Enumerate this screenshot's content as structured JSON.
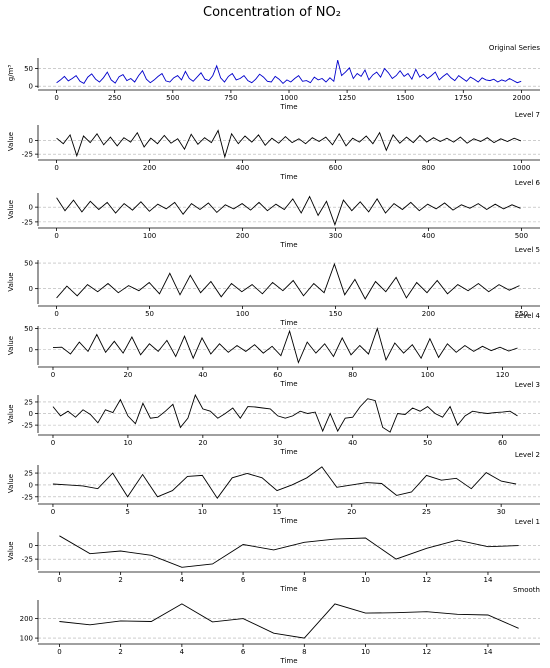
{
  "figure": {
    "title": "Concentration of NO₂"
  },
  "chart_data": [
    {
      "type": "line",
      "title": "Original Series",
      "xlabel": "Time",
      "ylabel": "g/m³",
      "color": "#0000cc",
      "xlim": [
        -80,
        2080
      ],
      "ylim": [
        -5,
        80
      ],
      "xticks": [
        0,
        250,
        500,
        750,
        1000,
        1250,
        1500,
        1750,
        2000
      ],
      "yticks": [
        0,
        50
      ],
      "grid": "horizontal dashed",
      "series": [
        {
          "x_count": 2000,
          "values": [
            10,
            18,
            28,
            15,
            22,
            30,
            14,
            8,
            26,
            35,
            20,
            12,
            24,
            40,
            18,
            9,
            27,
            33,
            16,
            22,
            12,
            30,
            44,
            20,
            10,
            18,
            28,
            36,
            15,
            12,
            24,
            30,
            18,
            42,
            22,
            14,
            26,
            38,
            20,
            16,
            30,
            58,
            24,
            12,
            28,
            36,
            18,
            22,
            30,
            16,
            10,
            20,
            34,
            26,
            14,
            12,
            28,
            20,
            8,
            18,
            12,
            22,
            30,
            14,
            16,
            10,
            26,
            18,
            22,
            12,
            24,
            14,
            74,
            30,
            40,
            52,
            22,
            36,
            28,
            46,
            18,
            32,
            40,
            26,
            50,
            38,
            22,
            30,
            44,
            28,
            36,
            20,
            48,
            26,
            34,
            22,
            30,
            40,
            18,
            28,
            36,
            24,
            16,
            30,
            22,
            14,
            26,
            20,
            12,
            24,
            18,
            16,
            20,
            12,
            18,
            14,
            22,
            16,
            10,
            14
          ]
        }
      ]
    },
    {
      "type": "line",
      "title": "Level 7",
      "xlabel": "Time",
      "ylabel": "Value",
      "color": "#000000",
      "xlim": [
        -40,
        1040
      ],
      "ylim": [
        -32,
        28
      ],
      "xticks": [
        0,
        200,
        400,
        600,
        800,
        1000
      ],
      "yticks": [
        -25,
        0
      ],
      "grid": "horizontal dashed",
      "series": [
        {
          "x_count": 1000,
          "values": [
            4,
            -6,
            10,
            -28,
            8,
            -4,
            12,
            -8,
            6,
            -10,
            5,
            -3,
            14,
            -12,
            4,
            -6,
            9,
            -5,
            3,
            -16,
            11,
            -7,
            5,
            -4,
            18,
            -30,
            12,
            -6,
            8,
            -3,
            10,
            -9,
            4,
            -5,
            7,
            -4,
            3,
            -6,
            5,
            -2,
            6,
            -8,
            12,
            -10,
            4,
            -3,
            8,
            -6,
            14,
            -18,
            10,
            -5,
            6,
            -4,
            9,
            -3,
            5,
            -2,
            4,
            -3,
            6,
            -5,
            3,
            -2,
            5,
            -4,
            3,
            -2,
            4,
            -1
          ]
        }
      ]
    },
    {
      "type": "line",
      "title": "Level 6",
      "xlabel": "Time",
      "ylabel": "Value",
      "color": "#000000",
      "xlim": [
        -20,
        520
      ],
      "ylim": [
        -32,
        24
      ],
      "xticks": [
        0,
        100,
        200,
        300,
        400,
        500
      ],
      "yticks": [
        -25,
        0
      ],
      "grid": "horizontal dashed",
      "series": [
        {
          "x_count": 500,
          "values": [
            16,
            -6,
            12,
            -8,
            10,
            -4,
            8,
            -10,
            6,
            -5,
            9,
            -7,
            5,
            -3,
            8,
            -12,
            6,
            -4,
            7,
            -9,
            4,
            -3,
            6,
            -5,
            8,
            -6,
            5,
            -4,
            14,
            -10,
            18,
            -14,
            10,
            -30,
            12,
            -6,
            9,
            -8,
            14,
            -10,
            6,
            -4,
            8,
            -6,
            5,
            -3,
            7,
            -5,
            4,
            -2,
            6,
            -4,
            5,
            -3,
            4,
            -2
          ]
        }
      ]
    },
    {
      "type": "line",
      "title": "Level 5",
      "xlabel": "Time",
      "ylabel": "Value",
      "color": "#000000",
      "xlim": [
        -10,
        260
      ],
      "ylim": [
        -30,
        56
      ],
      "xticks": [
        0,
        50,
        100,
        150,
        200,
        250
      ],
      "yticks": [
        0,
        50
      ],
      "grid": "horizontal dashed",
      "series": [
        {
          "x_count": 250,
          "values": [
            -18,
            5,
            -14,
            8,
            -6,
            10,
            -8,
            6,
            -4,
            12,
            -10,
            30,
            -12,
            26,
            -8,
            14,
            -16,
            10,
            -6,
            8,
            -10,
            12,
            -4,
            16,
            -14,
            10,
            -8,
            48,
            -12,
            18,
            -20,
            14,
            -6,
            22,
            -18,
            12,
            -8,
            16,
            -10,
            8,
            -4,
            10,
            -6,
            8,
            -3,
            6
          ]
        }
      ]
    },
    {
      "type": "line",
      "title": "Level 4",
      "xlabel": "Time",
      "ylabel": "Value",
      "color": "#000000",
      "xlim": [
        -4,
        130
      ],
      "ylim": [
        -36,
        56
      ],
      "xticks": [
        0,
        20,
        40,
        60,
        80,
        100,
        120
      ],
      "yticks": [
        0,
        50
      ],
      "grid": "horizontal dashed",
      "series": [
        {
          "x_count": 125,
          "values": [
            5,
            6,
            -10,
            18,
            -4,
            36,
            -6,
            20,
            -8,
            30,
            -12,
            14,
            -4,
            22,
            -16,
            32,
            -20,
            28,
            -10,
            14,
            -6,
            10,
            -4,
            12,
            -8,
            8,
            -14,
            44,
            -30,
            18,
            -8,
            14,
            -16,
            28,
            -12,
            10,
            -10,
            50,
            -24,
            16,
            -8,
            12,
            -20,
            26,
            -18,
            14,
            -6,
            10,
            -4,
            8,
            -2,
            6,
            -3,
            4
          ]
        }
      ]
    },
    {
      "type": "line",
      "title": "Level 3",
      "xlabel": "Time",
      "ylabel": "Value",
      "color": "#000000",
      "xlim": [
        -2,
        65
      ],
      "ylim": [
        -42,
        40
      ],
      "xticks": [
        0,
        10,
        20,
        30,
        40,
        50,
        60
      ],
      "yticks": [
        -25,
        0,
        25
      ],
      "grid": "horizontal dashed",
      "series": [
        {
          "x_count": 63,
          "values": [
            15,
            -5,
            5,
            -8,
            8,
            -2,
            -20,
            8,
            2,
            30,
            -5,
            -22,
            22,
            -10,
            -8,
            5,
            20,
            -30,
            -10,
            40,
            10,
            5,
            -10,
            0,
            12,
            -10,
            15,
            14,
            12,
            10,
            -5,
            -10,
            -5,
            5,
            0,
            3,
            -38,
            0,
            -38,
            -10,
            -8,
            15,
            32,
            28,
            -30,
            -40,
            0,
            -2,
            12,
            5,
            15,
            0,
            -8,
            15,
            -25,
            -5,
            5,
            2,
            0,
            2,
            3,
            5,
            -5
          ]
        }
      ]
    },
    {
      "type": "line",
      "title": "Level 2",
      "xlabel": "Time",
      "ylabel": "Value",
      "color": "#000000",
      "xlim": [
        -1,
        32.6
      ],
      "ylim": [
        -36,
        42
      ],
      "xticks": [
        0,
        5,
        10,
        15,
        20,
        25,
        30
      ],
      "yticks": [
        -25,
        0,
        25
      ],
      "grid": "horizontal dashed",
      "series": [
        {
          "x_count": 32,
          "values": [
            2,
            0,
            -2,
            -8,
            25,
            -25,
            22,
            -25,
            -12,
            18,
            20,
            -28,
            15,
            24,
            15,
            -12,
            0,
            15,
            38,
            -5,
            0,
            5,
            3,
            -22,
            -15,
            20,
            10,
            14,
            -8,
            26,
            8,
            2
          ]
        }
      ]
    },
    {
      "type": "line",
      "title": "Level 1",
      "xlabel": "Time",
      "ylabel": "Value",
      "color": "#000000",
      "xlim": [
        -0.7,
        15.7
      ],
      "ylim": [
        -45,
        25
      ],
      "xticks": [
        0,
        2,
        4,
        6,
        8,
        10,
        12,
        14
      ],
      "yticks": [
        -25,
        0
      ],
      "grid": "horizontal dashed",
      "series": [
        {
          "x_count": 16,
          "values": [
            18,
            -15,
            -10,
            -18,
            -40,
            -34,
            2,
            -8,
            6,
            12,
            14,
            -25,
            -5,
            10,
            -2,
            0
          ]
        }
      ]
    },
    {
      "type": "line",
      "title": "Smooth",
      "xlabel": "Time",
      "ylabel": "",
      "color": "#000000",
      "xlim": [
        -0.7,
        15.7
      ],
      "ylim": [
        80,
        295
      ],
      "xticks": [
        0,
        2,
        4,
        6,
        8,
        10,
        12,
        14
      ],
      "yticks": [
        100,
        200
      ],
      "grid": "horizontal dashed",
      "series": [
        {
          "x_count": 16,
          "values": [
            185,
            168,
            188,
            185,
            275,
            183,
            200,
            125,
            100,
            275,
            228,
            230,
            235,
            222,
            218,
            150
          ]
        }
      ]
    }
  ]
}
